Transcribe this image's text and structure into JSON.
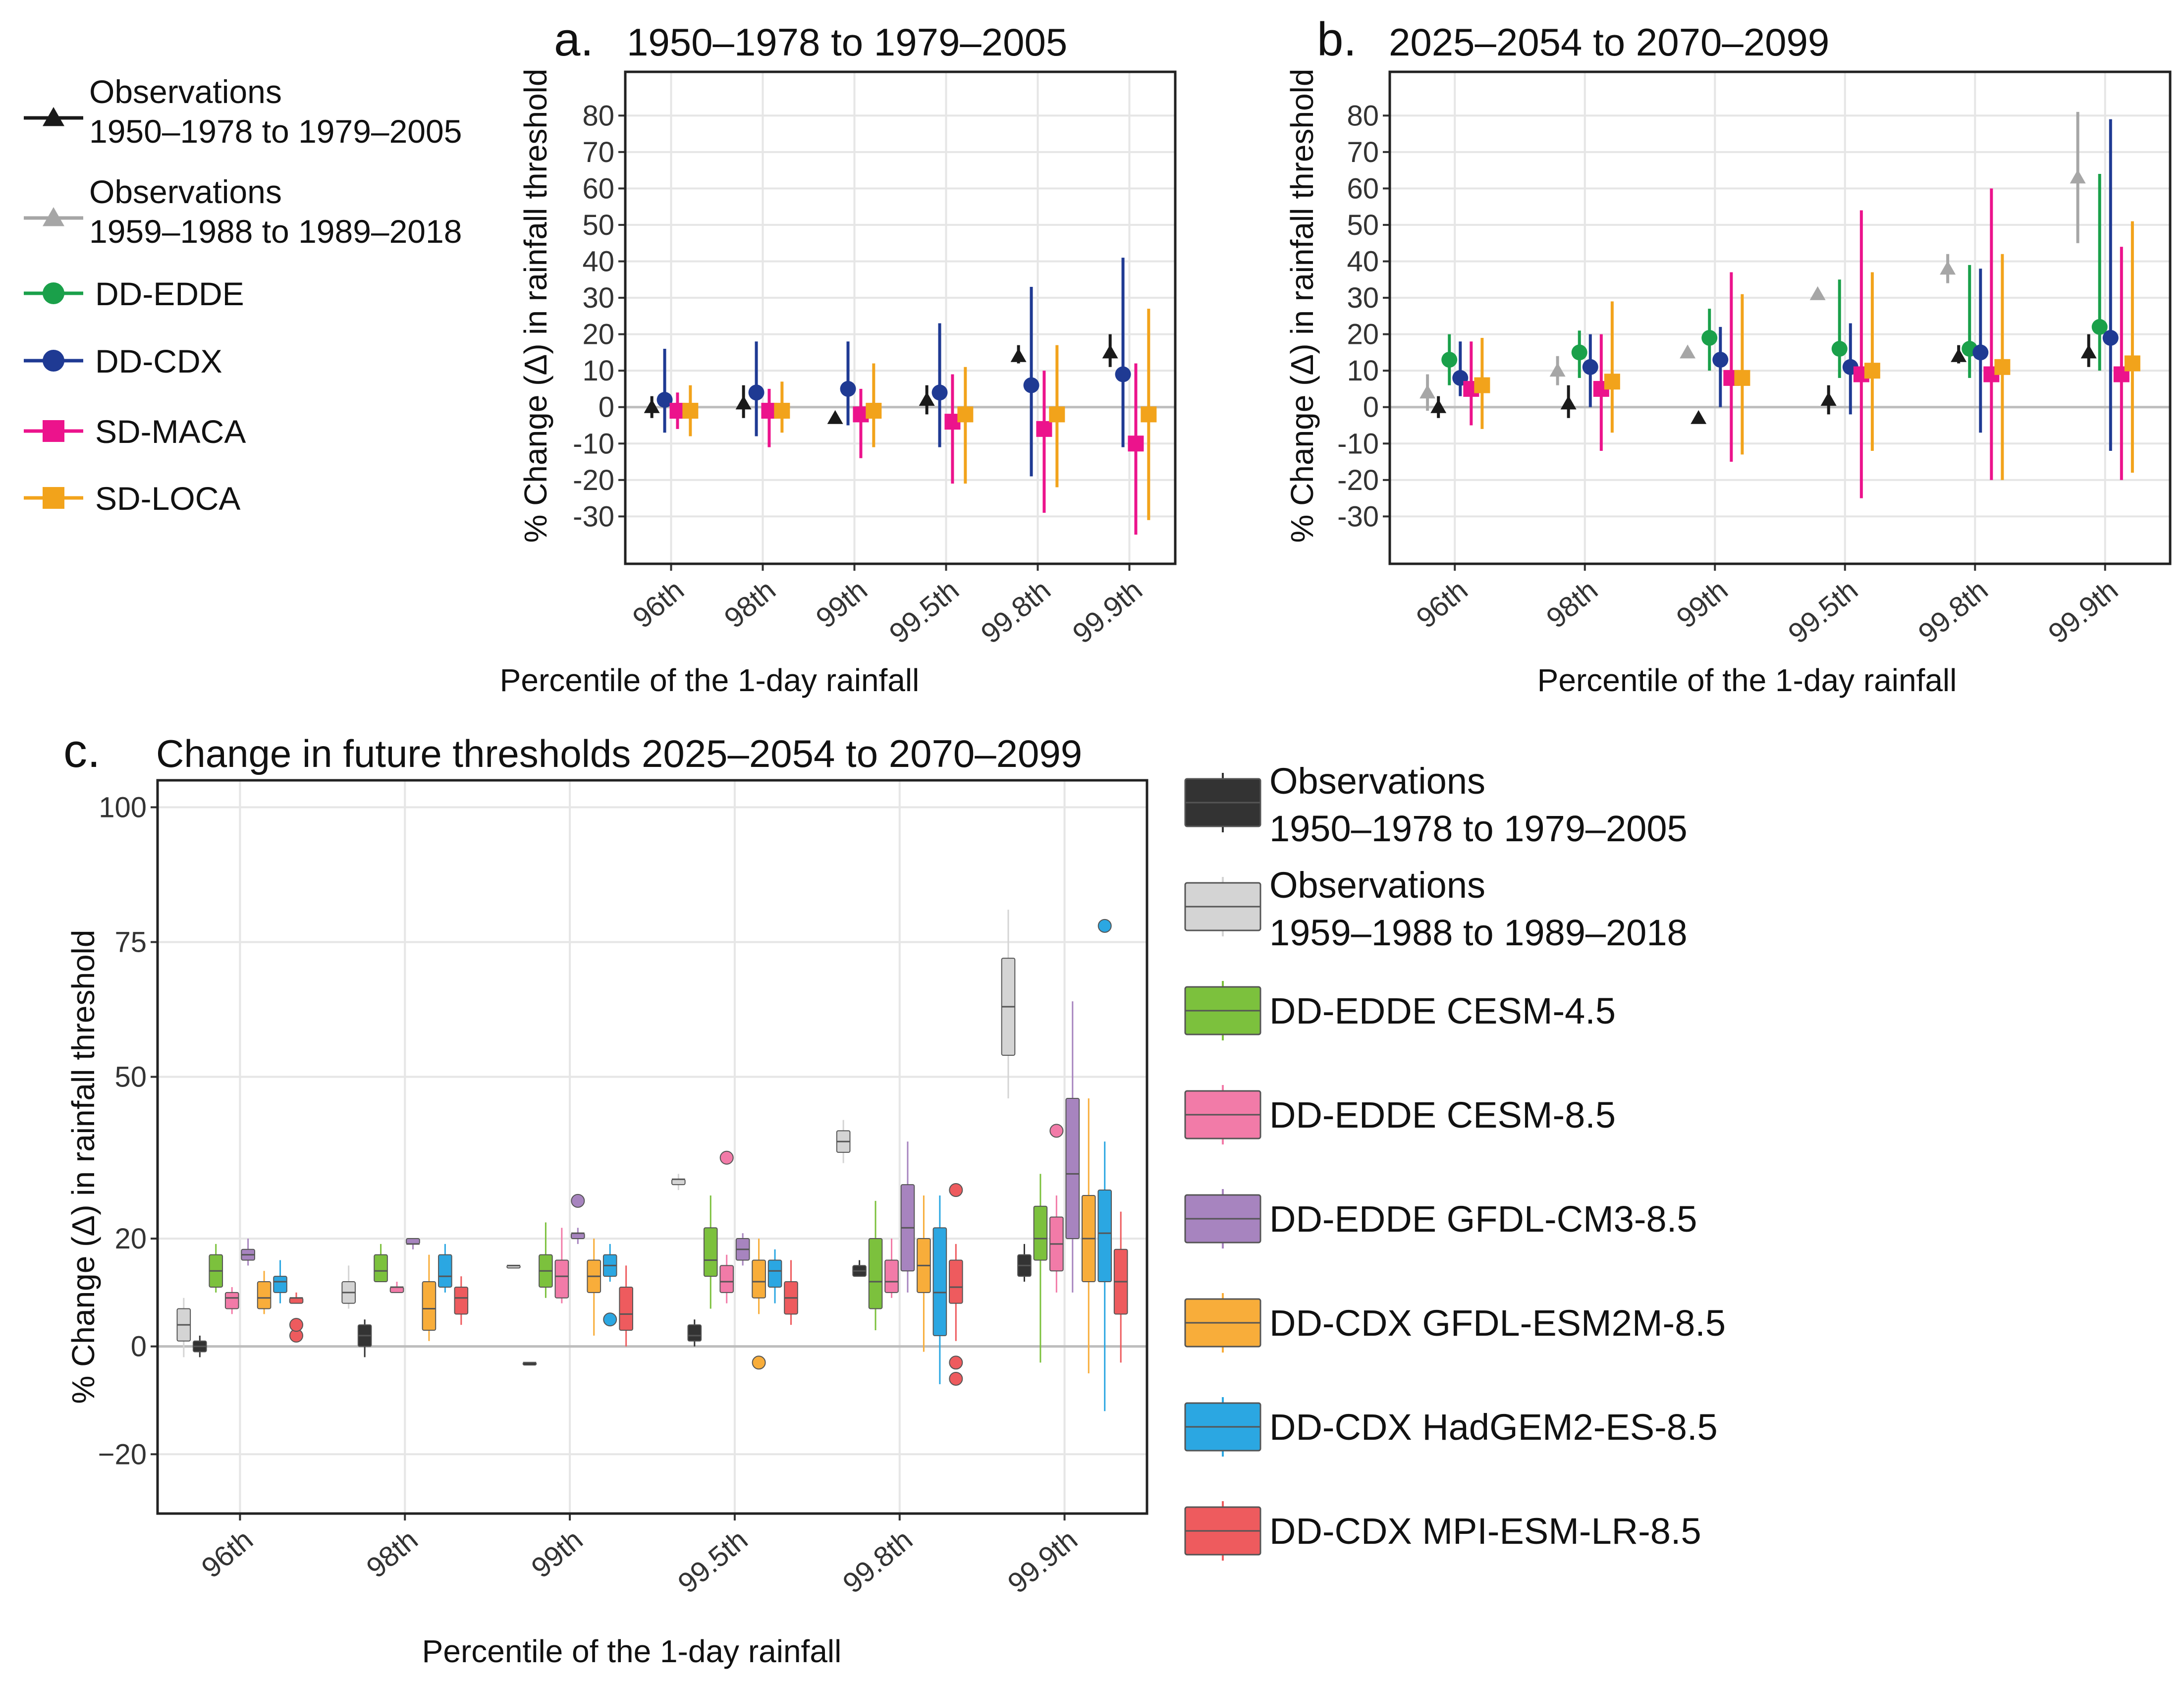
{
  "colors": {
    "obs1": "#1a1a1a",
    "obs2": "#a6a6a6",
    "edde": "#1aa04a",
    "cdx": "#1f3a93",
    "maca": "#ec138c",
    "loca": "#f2a31b",
    "box_obs1": "#333333",
    "box_obs2": "#d4d4d4",
    "box_edde45": "#7cc13d",
    "box_edde85": "#f27ba8",
    "box_gfdl": "#a784bf",
    "box_esm2m": "#f8ad3a",
    "box_had": "#2ba7e2",
    "box_mpi": "#ee5b5e",
    "grid": "#e6e6e6",
    "zero": "#bdbdbd"
  },
  "legend_top": [
    {
      "key": "obs1",
      "shape": "triangle",
      "line1": "Observations",
      "line2": "1950–1978 to 1979–2005"
    },
    {
      "key": "obs2",
      "shape": "triangle",
      "line1": "Observations",
      "line2": "1959–1988 to 1989–2018"
    },
    {
      "key": "edde",
      "shape": "circle",
      "line1": "DD-EDDE",
      "line2": ""
    },
    {
      "key": "cdx",
      "shape": "circle",
      "line1": "DD-CDX",
      "line2": ""
    },
    {
      "key": "maca",
      "shape": "square",
      "line1": "SD-MACA",
      "line2": ""
    },
    {
      "key": "loca",
      "shape": "square",
      "line1": "SD-LOCA",
      "line2": ""
    }
  ],
  "legend_bottom": [
    {
      "key": "box_obs1",
      "line1": "Observations",
      "line2": "1950–1978 to 1979–2005"
    },
    {
      "key": "box_obs2",
      "line1": "Observations",
      "line2": "1959–1988 to 1989–2018"
    },
    {
      "key": "box_edde45",
      "line1": "DD-EDDE CESM-4.5",
      "line2": ""
    },
    {
      "key": "box_edde85",
      "line1": "DD-EDDE CESM-8.5",
      "line2": ""
    },
    {
      "key": "box_gfdl",
      "line1": "DD-EDDE GFDL-CM3-8.5",
      "line2": ""
    },
    {
      "key": "box_esm2m",
      "line1": "DD-CDX GFDL-ESM2M-8.5",
      "line2": ""
    },
    {
      "key": "box_had",
      "line1": "DD-CDX HadGEM2-ES-8.5",
      "line2": ""
    },
    {
      "key": "box_mpi",
      "line1": "DD-CDX MPI-ESM-LR-8.5",
      "line2": ""
    }
  ],
  "chart_data": [
    {
      "panel": "a.",
      "type": "scatter",
      "title": "1950–1978 to 1979–2005",
      "xlabel": "Percentile of the 1-day rainfall",
      "ylabel": "% Change (Δ) in rainfall threshold",
      "categories": [
        "96th",
        "98th",
        "99th",
        "99.5th",
        "99.8th",
        "99.9th"
      ],
      "ylim": [
        -43,
        92
      ],
      "yticks": [
        "-30",
        "-20",
        "-10",
        "0",
        "10",
        "20",
        "30",
        "40",
        "50",
        "60",
        "70",
        "80"
      ],
      "series": [
        {
          "name": "Observations 1950–1978 to 1979–2005",
          "key": "obs1",
          "shape": "triangle",
          "values": [
            0,
            1,
            -3,
            2,
            14,
            15
          ],
          "low": [
            -3,
            -3,
            null,
            -2,
            12,
            11
          ],
          "high": [
            3,
            6,
            null,
            6,
            17,
            20
          ]
        },
        {
          "name": "DD-CDX",
          "key": "cdx",
          "shape": "circle",
          "values": [
            2,
            4,
            5,
            4,
            6,
            9
          ],
          "low": [
            -7,
            -8,
            -5,
            -11,
            -19,
            -11
          ],
          "high": [
            16,
            18,
            18,
            23,
            33,
            41
          ]
        },
        {
          "name": "SD-MACA",
          "key": "maca",
          "shape": "square",
          "values": [
            -1,
            -1,
            -2,
            -4,
            -6,
            -10
          ],
          "low": [
            -6,
            -11,
            -14,
            -21,
            -29,
            -35
          ],
          "high": [
            4,
            5,
            5,
            9,
            10,
            12
          ]
        },
        {
          "name": "SD-LOCA",
          "key": "loca",
          "shape": "square",
          "values": [
            -1,
            -1,
            -1,
            -2,
            -2,
            -2
          ],
          "low": [
            -8,
            -7,
            -11,
            -21,
            -22,
            -31
          ],
          "high": [
            6,
            7,
            12,
            11,
            17,
            27
          ]
        }
      ]
    },
    {
      "panel": "b.",
      "type": "scatter",
      "title": "2025–2054 to 2070–2099",
      "xlabel": "Percentile of the 1-day rainfall",
      "ylabel": "% Change (Δ) in rainfall threshold",
      "categories": [
        "96th",
        "98th",
        "99th",
        "99.5th",
        "99.8th",
        "99.9th"
      ],
      "ylim": [
        -43,
        92
      ],
      "yticks": [
        "-30",
        "-20",
        "-10",
        "0",
        "10",
        "20",
        "30",
        "40",
        "50",
        "60",
        "70",
        "80"
      ],
      "series": [
        {
          "name": "Observations 1959–1988 to 1989–2018",
          "key": "obs2",
          "shape": "triangle",
          "values": [
            4,
            10,
            15,
            31,
            38,
            63
          ],
          "low": [
            -1,
            6,
            null,
            null,
            34,
            45
          ],
          "high": [
            9,
            14,
            null,
            null,
            42,
            81
          ]
        },
        {
          "name": "Observations 1950–1978 to 1979–2005",
          "key": "obs1",
          "shape": "triangle",
          "values": [
            0,
            1,
            -3,
            2,
            14,
            15
          ],
          "low": [
            -3,
            -3,
            null,
            -2,
            12,
            11
          ],
          "high": [
            3,
            6,
            null,
            6,
            17,
            20
          ]
        },
        {
          "name": "DD-EDDE",
          "key": "edde",
          "shape": "circle",
          "values": [
            13,
            15,
            19,
            16,
            16,
            22
          ],
          "low": [
            6,
            8,
            10,
            8,
            8,
            10
          ],
          "high": [
            20,
            21,
            27,
            35,
            39,
            64
          ]
        },
        {
          "name": "DD-CDX",
          "key": "cdx",
          "shape": "circle",
          "values": [
            8,
            11,
            13,
            11,
            15,
            19
          ],
          "low": [
            3,
            0,
            0,
            -2,
            -7,
            -12
          ],
          "high": [
            18,
            20,
            22,
            23,
            38,
            79
          ]
        },
        {
          "name": "SD-MACA",
          "key": "maca",
          "shape": "square",
          "values": [
            5,
            5,
            8,
            9,
            9,
            9
          ],
          "low": [
            -5,
            -12,
            -15,
            -25,
            -20,
            -20
          ],
          "high": [
            18,
            20,
            37,
            54,
            60,
            44
          ]
        },
        {
          "name": "SD-LOCA",
          "key": "loca",
          "shape": "square",
          "values": [
            6,
            7,
            8,
            10,
            11,
            12
          ],
          "low": [
            -6,
            -7,
            -13,
            -12,
            -20,
            -18
          ],
          "high": [
            19,
            29,
            31,
            37,
            42,
            51
          ]
        }
      ]
    },
    {
      "panel": "c.",
      "type": "box",
      "title": "Change in future thresholds 2025–2054 to 2070–2099",
      "xlabel": "Percentile of the 1-day rainfall",
      "ylabel": "% Change (Δ) in rainfall threshold",
      "categories": [
        "96th",
        "98th",
        "99th",
        "99.5th",
        "99.8th",
        "99.9th"
      ],
      "ylim": [
        -31,
        105
      ],
      "yticks": [
        "−20",
        "0",
        "20",
        "50",
        "75",
        "100"
      ],
      "series": [
        {
          "name": "Observations 1959–1988 to 1989–2018",
          "key": "box_obs2",
          "boxes": [
            {
              "min": -2,
              "q1": 1,
              "med": 4,
              "q3": 7,
              "max": 9,
              "out": []
            },
            {
              "min": 7,
              "q1": 8,
              "med": 10,
              "q3": 12,
              "max": 15,
              "out": []
            },
            {
              "min": 15,
              "q1": 15,
              "med": 15,
              "q3": 15,
              "max": 15,
              "out": []
            },
            {
              "min": 29,
              "q1": 30,
              "med": 31,
              "q3": 31,
              "max": 32,
              "out": []
            },
            {
              "min": 34,
              "q1": 36,
              "med": 38,
              "q3": 40,
              "max": 42,
              "out": []
            },
            {
              "min": 46,
              "q1": 54,
              "med": 63,
              "q3": 72,
              "max": 81,
              "out": []
            }
          ]
        },
        {
          "name": "Observations 1950–1978 to 1979–2005",
          "key": "box_obs1",
          "boxes": [
            {
              "min": -2,
              "q1": -1,
              "med": 0,
              "q3": 1,
              "max": 2,
              "out": []
            },
            {
              "min": -2,
              "q1": 0,
              "med": 2,
              "q3": 4,
              "max": 5,
              "out": []
            },
            {
              "min": -3,
              "q1": -3,
              "med": -3,
              "q3": -3,
              "max": -3,
              "out": []
            },
            {
              "min": 0,
              "q1": 1,
              "med": 2,
              "q3": 4,
              "max": 5,
              "out": []
            },
            {
              "min": 13,
              "q1": 13,
              "med": 14,
              "q3": 15,
              "max": 16,
              "out": []
            },
            {
              "min": 12,
              "q1": 13,
              "med": 15,
              "q3": 17,
              "max": 19,
              "out": []
            }
          ]
        },
        {
          "name": "DD-EDDE CESM-4.5",
          "key": "box_edde45",
          "boxes": [
            {
              "min": 10,
              "q1": 11,
              "med": 14,
              "q3": 17,
              "max": 19,
              "out": []
            },
            {
              "min": 12,
              "q1": 12,
              "med": 14,
              "q3": 17,
              "max": 19,
              "out": []
            },
            {
              "min": 9,
              "q1": 11,
              "med": 14,
              "q3": 17,
              "max": 23,
              "out": []
            },
            {
              "min": 7,
              "q1": 13,
              "med": 16,
              "q3": 22,
              "max": 28,
              "out": []
            },
            {
              "min": 3,
              "q1": 7,
              "med": 12,
              "q3": 20,
              "max": 27,
              "out": []
            },
            {
              "min": -3,
              "q1": 16,
              "med": 20,
              "q3": 26,
              "max": 32,
              "out": []
            }
          ]
        },
        {
          "name": "DD-EDDE CESM-8.5",
          "key": "box_edde85",
          "boxes": [
            {
              "min": 6,
              "q1": 7,
              "med": 9,
              "q3": 10,
              "max": 11,
              "out": []
            },
            {
              "min": 10,
              "q1": 10,
              "med": 11,
              "q3": 11,
              "max": 12,
              "out": []
            },
            {
              "min": 8,
              "q1": 9,
              "med": 13,
              "q3": 16,
              "max": 22,
              "out": []
            },
            {
              "min": 8,
              "q1": 10,
              "med": 12,
              "q3": 15,
              "max": 17,
              "out": [
                35
              ]
            },
            {
              "min": 9,
              "q1": 10,
              "med": 12,
              "q3": 16,
              "max": 20,
              "out": []
            },
            {
              "min": 10,
              "q1": 14,
              "med": 19,
              "q3": 24,
              "max": 28,
              "out": [
                40
              ]
            }
          ]
        },
        {
          "name": "DD-EDDE GFDL-CM3-8.5",
          "key": "box_gfdl",
          "boxes": [
            {
              "min": 15,
              "q1": 16,
              "med": 17,
              "q3": 18,
              "max": 20,
              "out": []
            },
            {
              "min": 18,
              "q1": 19,
              "med": 19,
              "q3": 20,
              "max": 20,
              "out": []
            },
            {
              "min": 19,
              "q1": 20,
              "med": 21,
              "q3": 21,
              "max": 22,
              "out": [
                27
              ]
            },
            {
              "min": 15,
              "q1": 16,
              "med": 18,
              "q3": 20,
              "max": 21,
              "out": []
            },
            {
              "min": 10,
              "q1": 14,
              "med": 22,
              "q3": 30,
              "max": 38,
              "out": []
            },
            {
              "min": 10,
              "q1": 20,
              "med": 32,
              "q3": 46,
              "max": 64,
              "out": []
            }
          ]
        },
        {
          "name": "DD-CDX GFDL-ESM2M-8.5",
          "key": "box_esm2m",
          "boxes": [
            {
              "min": 6,
              "q1": 7,
              "med": 9,
              "q3": 12,
              "max": 14,
              "out": []
            },
            {
              "min": 1,
              "q1": 3,
              "med": 7,
              "q3": 12,
              "max": 17,
              "out": []
            },
            {
              "min": 2,
              "q1": 10,
              "med": 13,
              "q3": 16,
              "max": 20,
              "out": []
            },
            {
              "min": 6,
              "q1": 9,
              "med": 12,
              "q3": 16,
              "max": 20,
              "out": [
                -3
              ]
            },
            {
              "min": -1,
              "q1": 10,
              "med": 15,
              "q3": 20,
              "max": 28,
              "out": []
            },
            {
              "min": -5,
              "q1": 12,
              "med": 20,
              "q3": 28,
              "max": 46,
              "out": []
            }
          ]
        },
        {
          "name": "DD-CDX HadGEM2-ES-8.5",
          "key": "box_had",
          "boxes": [
            {
              "min": 8,
              "q1": 10,
              "med": 12,
              "q3": 13,
              "max": 16,
              "out": []
            },
            {
              "min": 10,
              "q1": 11,
              "med": 13,
              "q3": 17,
              "max": 19,
              "out": []
            },
            {
              "min": 12,
              "q1": 13,
              "med": 15,
              "q3": 17,
              "max": 19,
              "out": [
                5
              ]
            },
            {
              "min": 8,
              "q1": 11,
              "med": 14,
              "q3": 16,
              "max": 18,
              "out": []
            },
            {
              "min": -7,
              "q1": 2,
              "med": 10,
              "q3": 22,
              "max": 28,
              "out": []
            },
            {
              "min": -12,
              "q1": 12,
              "med": 21,
              "q3": 29,
              "max": 38,
              "out": [
                78
              ]
            }
          ]
        },
        {
          "name": "DD-CDX MPI-ESM-LR-8.5",
          "key": "box_mpi",
          "boxes": [
            {
              "min": 8,
              "q1": 8,
              "med": 9,
              "q3": 9,
              "max": 10,
              "out": [
                2,
                4
              ]
            },
            {
              "min": 4,
              "q1": 6,
              "med": 9,
              "q3": 11,
              "max": 13,
              "out": []
            },
            {
              "min": 0,
              "q1": 3,
              "med": 6,
              "q3": 11,
              "max": 15,
              "out": []
            },
            {
              "min": 4,
              "q1": 6,
              "med": 9,
              "q3": 12,
              "max": 16,
              "out": []
            },
            {
              "min": 1,
              "q1": 8,
              "med": 11,
              "q3": 16,
              "max": 19,
              "out": [
                -3,
                -6,
                29
              ]
            },
            {
              "min": -3,
              "q1": 6,
              "med": 12,
              "q3": 18,
              "max": 25,
              "out": []
            }
          ]
        }
      ]
    }
  ]
}
